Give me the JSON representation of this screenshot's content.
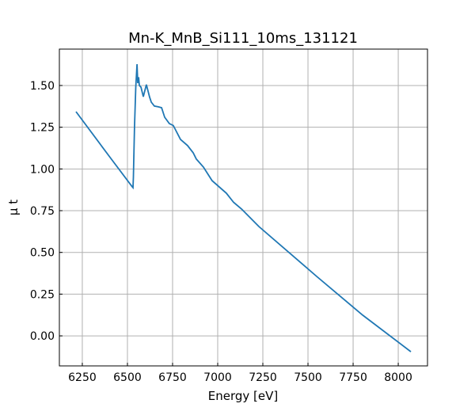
{
  "chart_data": {
    "type": "line",
    "title": "Mn-K_MnB_Si111_10ms_131121",
    "xlabel": "Energy [eV]",
    "ylabel": "μ t",
    "xlim": [
      6123,
      8162
    ],
    "ylim": [
      -0.18,
      1.718
    ],
    "grid": true,
    "xticks": [
      6250,
      6500,
      6750,
      7000,
      7250,
      7500,
      7750,
      8000
    ],
    "xtick_labels": [
      "6250",
      "6500",
      "6750",
      "7000",
      "7250",
      "7500",
      "7750",
      "8000"
    ],
    "yticks": [
      0,
      0.25,
      0.5,
      0.75,
      1.0,
      1.25,
      1.5
    ],
    "ytick_labels": [
      "0.00",
      "0.25",
      "0.50",
      "0.75",
      "1.00",
      "1.25",
      "1.50"
    ],
    "series": [
      {
        "name": "mu_t",
        "color": "#1f77b4",
        "x": [
          6215,
          6408,
          6525,
          6531,
          6533,
          6535,
          6539,
          6546,
          6553,
          6557,
          6562,
          6566,
          6575,
          6588,
          6605,
          6623,
          6632,
          6649,
          6671,
          6689,
          6706,
          6732,
          6754,
          6794,
          6833,
          6864,
          6881,
          6921,
          6969,
          7048,
          7088,
          7132,
          7228,
          7548,
          7803,
          8070
        ],
        "y": [
          1.343,
          1.063,
          0.895,
          0.888,
          0.95,
          1.06,
          1.25,
          1.49,
          1.628,
          1.514,
          1.55,
          1.5,
          1.49,
          1.433,
          1.505,
          1.43,
          1.4,
          1.377,
          1.372,
          1.367,
          1.31,
          1.272,
          1.26,
          1.177,
          1.14,
          1.097,
          1.06,
          1.011,
          0.93,
          0.855,
          0.8,
          0.76,
          0.655,
          0.356,
          0.124,
          -0.095
        ]
      }
    ]
  }
}
